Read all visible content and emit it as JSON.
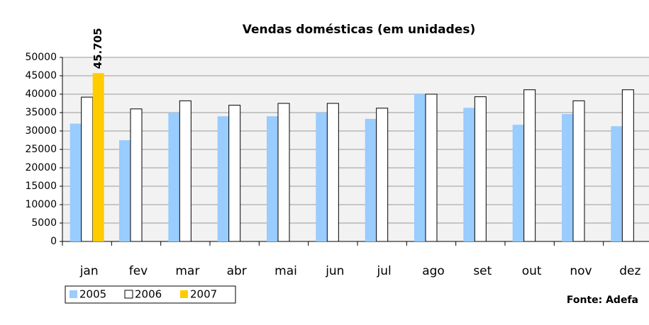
{
  "chart_data": {
    "type": "bar",
    "title": "Vendas domésticas (em unidades)",
    "categories": [
      "jan",
      "fev",
      "mar",
      "abr",
      "mai",
      "jun",
      "jul",
      "ago",
      "set",
      "out",
      "nov",
      "dez"
    ],
    "series": [
      {
        "name": "2005",
        "color": "#99ccff",
        "values": [
          32000,
          27500,
          35000,
          34000,
          34000,
          35000,
          33300,
          40000,
          36300,
          31700,
          34600,
          31300
        ]
      },
      {
        "name": "2006",
        "color": "#ffffff",
        "values": [
          39200,
          36000,
          38200,
          37000,
          37500,
          37500,
          36200,
          40000,
          39300,
          41200,
          38200,
          41200
        ]
      },
      {
        "name": "2007",
        "color": "#ffcc00",
        "values": [
          45705,
          null,
          null,
          null,
          null,
          null,
          null,
          null,
          null,
          null,
          null,
          null
        ],
        "value_labels": [
          "45.705",
          null,
          null,
          null,
          null,
          null,
          null,
          null,
          null,
          null,
          null,
          null
        ]
      }
    ],
    "ylim": [
      0,
      50000
    ],
    "yticks": [
      0,
      5000,
      10000,
      15000,
      20000,
      25000,
      30000,
      35000,
      40000,
      45000,
      50000
    ],
    "grid": true,
    "legend": "bottom-left",
    "source": "Fonte: Adefa"
  }
}
